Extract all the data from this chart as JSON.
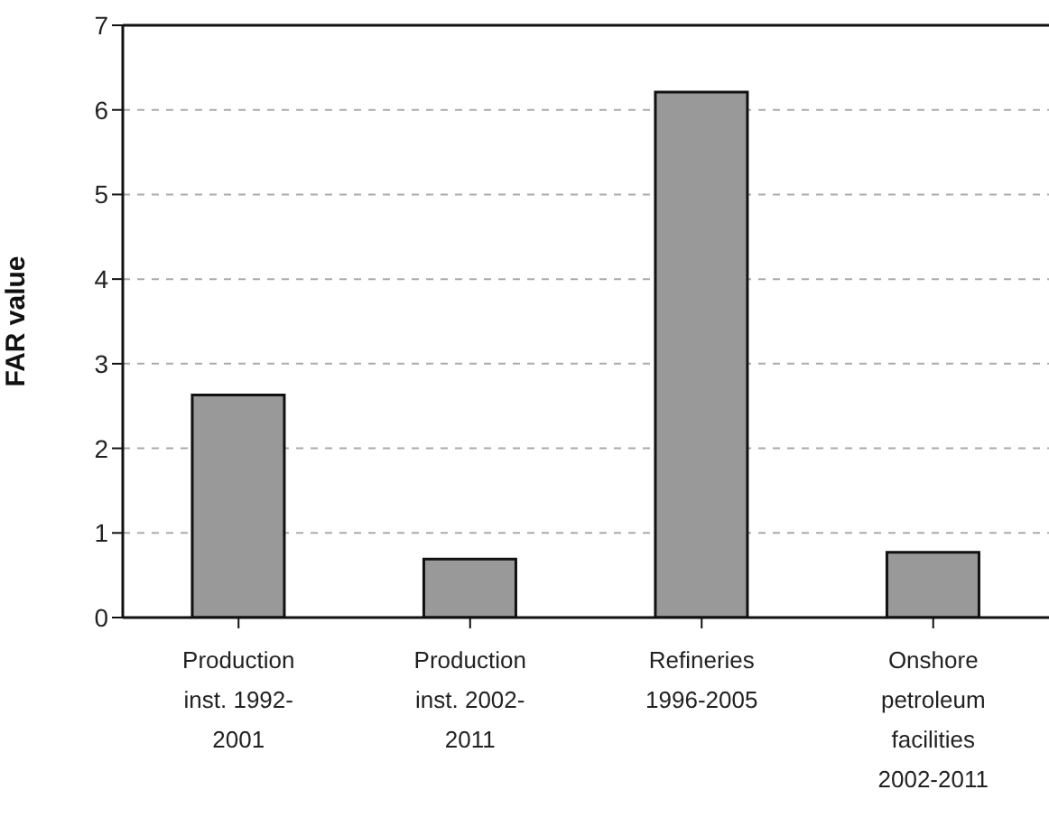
{
  "chart_data": {
    "type": "bar",
    "ylabel": "FAR value",
    "categories": [
      "Production inst. 1992-2001",
      "Production inst. 2002-2011",
      "Refineries 1996-2005",
      "Onshore petroleum facilities 2002-2011"
    ],
    "values": [
      2.63,
      0.69,
      6.21,
      0.77
    ],
    "color": "#999999",
    "ylim": [
      0,
      7
    ],
    "yticks": [
      0,
      1,
      2,
      3,
      4,
      5,
      6,
      7
    ],
    "grid": "y"
  }
}
